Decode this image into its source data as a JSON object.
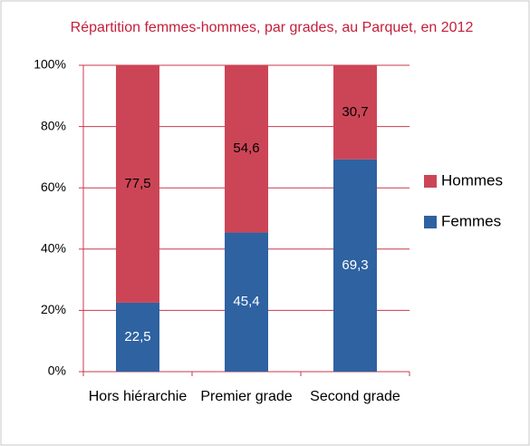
{
  "chart_data": {
    "type": "stacked_bar",
    "title": "Répartition femmes-hommes, par grades, au Parquet, en 2012",
    "categories": [
      "Hors hiérarchie",
      "Premier grade",
      "Second grade"
    ],
    "series": [
      {
        "name": "Femmes",
        "color": "#2e62a1",
        "values": [
          22.5,
          45.4,
          69.3
        ],
        "value_labels": [
          "22,5",
          "45,4",
          "69,3"
        ]
      },
      {
        "name": "Hommes",
        "color": "#cc4556",
        "values": [
          77.5,
          54.6,
          30.7
        ],
        "value_labels": [
          "77,5",
          "54,6",
          "30,7"
        ]
      }
    ],
    "ylim": [
      0,
      100
    ],
    "yticks": [
      {
        "value": 0,
        "label": "0%"
      },
      {
        "value": 20,
        "label": "20%"
      },
      {
        "value": 40,
        "label": "40%"
      },
      {
        "value": 60,
        "label": "60%"
      },
      {
        "value": 80,
        "label": "80%"
      },
      {
        "value": 100,
        "label": "100%"
      }
    ],
    "grid": true,
    "legend": "right"
  }
}
